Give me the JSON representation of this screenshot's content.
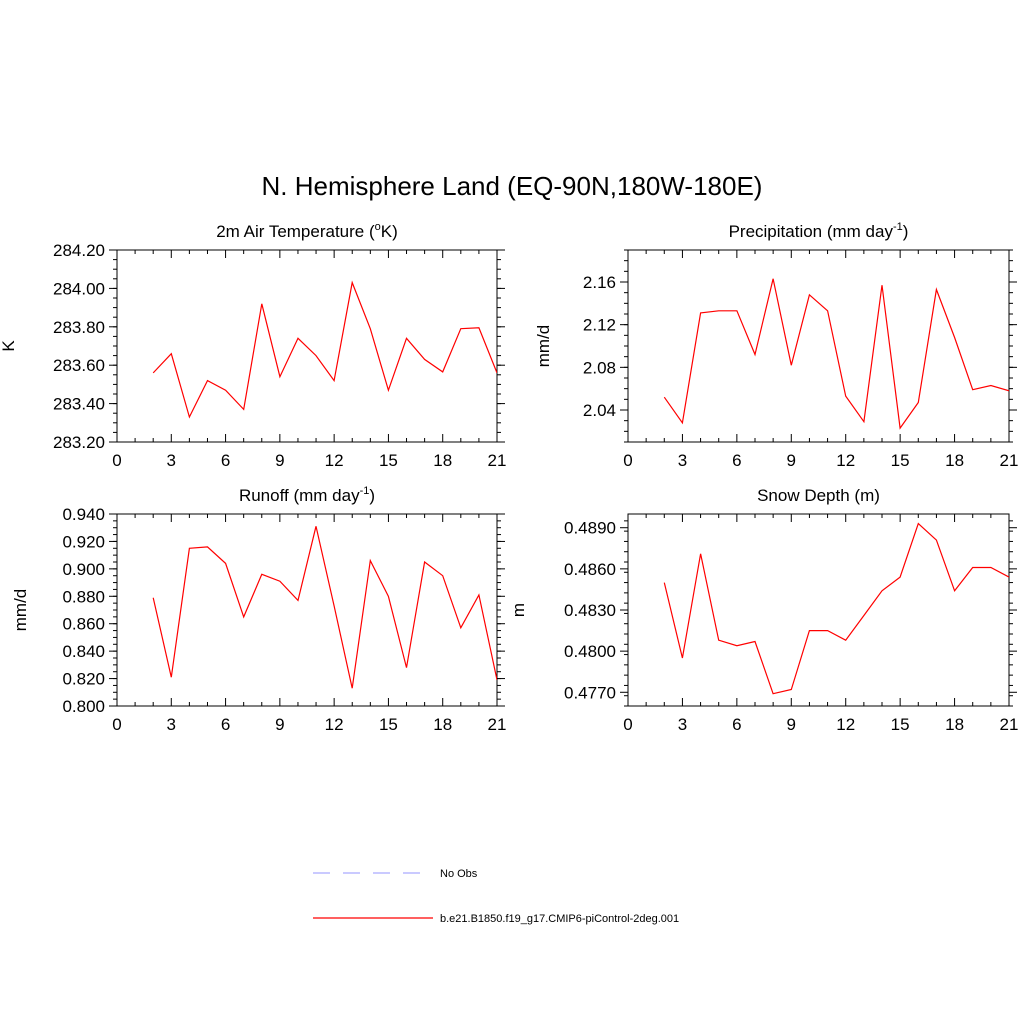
{
  "figure_title": "N. Hemisphere Land (EQ-90N,180W-180E)",
  "legend": [
    {
      "label": "No Obs",
      "color": "#aaaaff",
      "dash": true
    },
    {
      "label": "b.e21.B1850.f19_g17.CMIP6-piControl-2deg.001",
      "color": "#ff0000",
      "dash": false
    }
  ],
  "chart_data": [
    {
      "type": "line",
      "title_main": "2m Air Temperature (",
      "title_sup": "o",
      "title_tail": "K)",
      "xlabel": "",
      "ylabel": "K",
      "xlim": [
        0,
        21
      ],
      "ylim": [
        283.2,
        284.2
      ],
      "x_ticks": [
        "0",
        "3",
        "6",
        "9",
        "12",
        "15",
        "18",
        "21"
      ],
      "y_ticks": [
        "283.20",
        "283.40",
        "283.60",
        "283.80",
        "284.00",
        "284.20"
      ],
      "series": [
        {
          "color": "#ff0000",
          "x": [
            2,
            3,
            4,
            5,
            6,
            7,
            8,
            9,
            10,
            11,
            12,
            13,
            14,
            15,
            16,
            17,
            18,
            19,
            20,
            21
          ],
          "y": [
            283.56,
            283.66,
            283.33,
            283.52,
            283.47,
            283.37,
            283.92,
            283.54,
            283.74,
            283.65,
            283.52,
            284.03,
            283.79,
            283.47,
            283.74,
            283.63,
            283.565,
            283.79,
            283.795,
            283.56
          ]
        }
      ]
    },
    {
      "type": "line",
      "title_main": "Precipitation (mm day",
      "title_sup": "-1",
      "title_tail": ")",
      "xlabel": "",
      "ylabel": "mm/d",
      "xlim": [
        0,
        21
      ],
      "ylim": [
        2.01,
        2.19
      ],
      "x_ticks": [
        "0",
        "3",
        "6",
        "9",
        "12",
        "15",
        "18",
        "21"
      ],
      "y_ticks": [
        "2.04",
        "2.08",
        "2.12",
        "2.16"
      ],
      "series": [
        {
          "color": "#ff0000",
          "x": [
            2,
            3,
            4,
            5,
            6,
            7,
            8,
            9,
            10,
            11,
            12,
            13,
            14,
            15,
            16,
            17,
            18,
            19,
            20,
            21
          ],
          "y": [
            2.052,
            2.028,
            2.131,
            2.133,
            2.133,
            2.092,
            2.163,
            2.082,
            2.148,
            2.133,
            2.053,
            2.029,
            2.157,
            2.023,
            2.047,
            2.153,
            2.108,
            2.059,
            2.063,
            2.058
          ]
        }
      ]
    },
    {
      "type": "line",
      "title_main": "Runoff (mm day",
      "title_sup": "-1",
      "title_tail": ")",
      "xlabel": "",
      "ylabel": "mm/d",
      "xlim": [
        0,
        21
      ],
      "ylim": [
        0.8,
        0.94
      ],
      "x_ticks": [
        "0",
        "3",
        "6",
        "9",
        "12",
        "15",
        "18",
        "21"
      ],
      "y_ticks": [
        "0.800",
        "0.820",
        "0.840",
        "0.860",
        "0.880",
        "0.900",
        "0.920",
        "0.940"
      ],
      "series": [
        {
          "color": "#ff0000",
          "x": [
            2,
            3,
            4,
            5,
            6,
            7,
            8,
            9,
            10,
            11,
            12,
            13,
            14,
            15,
            16,
            17,
            18,
            19,
            20,
            21
          ],
          "y": [
            0.879,
            0.821,
            0.915,
            0.916,
            0.904,
            0.865,
            0.896,
            0.891,
            0.877,
            0.931,
            0.873,
            0.813,
            0.906,
            0.88,
            0.828,
            0.905,
            0.895,
            0.857,
            0.881,
            0.819
          ]
        }
      ]
    },
    {
      "type": "line",
      "title_main": "Snow Depth (m)",
      "title_sup": "",
      "title_tail": "",
      "xlabel": "",
      "ylabel": "m",
      "xlim": [
        0,
        21
      ],
      "ylim": [
        0.476,
        0.49
      ],
      "x_ticks": [
        "0",
        "3",
        "6",
        "9",
        "12",
        "15",
        "18",
        "21"
      ],
      "y_ticks": [
        "0.4770",
        "0.4800",
        "0.4830",
        "0.4860",
        "0.4890"
      ],
      "series": [
        {
          "color": "#ff0000",
          "x": [
            2,
            3,
            4,
            5,
            6,
            7,
            8,
            9,
            10,
            11,
            12,
            13,
            14,
            15,
            16,
            17,
            18,
            19,
            20,
            21
          ],
          "y": [
            0.485,
            0.4795,
            0.4871,
            0.4808,
            0.4804,
            0.4807,
            0.4769,
            0.4772,
            0.4815,
            0.4815,
            0.4808,
            0.4826,
            0.4844,
            0.4854,
            0.4893,
            0.4881,
            0.4844,
            0.4861,
            0.4861,
            0.4854
          ]
        }
      ]
    }
  ]
}
